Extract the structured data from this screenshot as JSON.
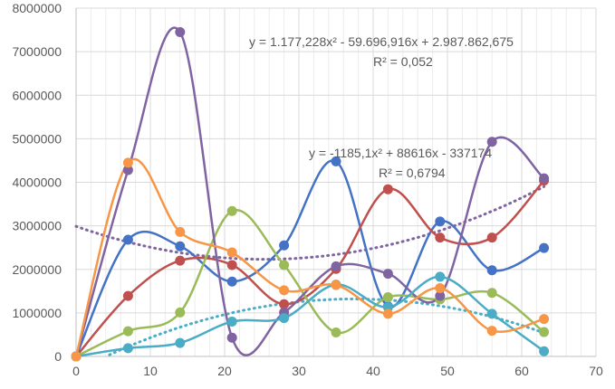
{
  "chart_data": {
    "type": "scatter",
    "style": "smoothed lines with markers",
    "grid": true,
    "legend": "none",
    "xlim": [
      0,
      70
    ],
    "ylim": [
      0,
      8000000
    ],
    "x_ticks": [
      "0",
      "10",
      "20",
      "30",
      "40",
      "50",
      "60",
      "70"
    ],
    "y_ticks": [
      "0",
      "1000000",
      "2000000",
      "3000000",
      "4000000",
      "5000000",
      "6000000",
      "7000000",
      "8000000"
    ],
    "x": [
      0,
      7,
      14,
      21,
      28,
      35,
      42,
      49,
      56,
      63
    ],
    "series": [
      {
        "color": "#4472C4",
        "values": [
          0,
          2680000,
          2530000,
          1720000,
          2550000,
          4480000,
          1150000,
          3100000,
          1980000,
          2490000
        ]
      },
      {
        "color": "#C0504D",
        "values": [
          0,
          1390000,
          2200000,
          2100000,
          1200000,
          2010000,
          3840000,
          2730000,
          2730000,
          4040000
        ]
      },
      {
        "color": "#9BBB59",
        "values": [
          0,
          580000,
          1010000,
          3340000,
          2100000,
          550000,
          1360000,
          1310000,
          1460000,
          560000
        ]
      },
      {
        "color": "#8064A2",
        "values": [
          0,
          4280000,
          7450000,
          430000,
          1010000,
          2070000,
          1900000,
          1390000,
          4930000,
          4090000
        ]
      },
      {
        "color": "#4BACC6",
        "values": [
          0,
          190000,
          310000,
          800000,
          880000,
          1650000,
          1130000,
          1830000,
          980000,
          120000
        ]
      },
      {
        "color": "#F79646",
        "values": [
          0,
          4450000,
          2860000,
          2390000,
          1520000,
          1640000,
          980000,
          1570000,
          590000,
          860000
        ]
      }
    ],
    "trendlines": [
      {
        "color": "#8064A2",
        "a": 1177.228,
        "b": -59696.916,
        "c": 2987862.675
      },
      {
        "color": "#4BACC6",
        "a": -1185.1,
        "b": 88616,
        "c": -337174
      }
    ],
    "annotations": [
      {
        "text": "y = 1.177,228x² - 59.696,916x + 2.987.862,675"
      },
      {
        "text": "R² = 0,052"
      },
      {
        "text": "y = -1185,1x² + 88616x - 337174"
      },
      {
        "text": "R² = 0,6794"
      }
    ]
  }
}
